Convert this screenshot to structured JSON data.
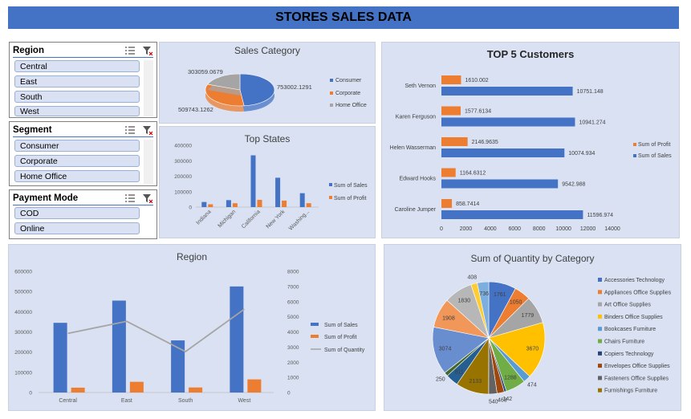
{
  "header": {
    "title": "STORES SALES DATA"
  },
  "slicers": {
    "region": {
      "title": "Region",
      "items": [
        "Central",
        "East",
        "South",
        "West"
      ]
    },
    "segment": {
      "title": "Segment",
      "items": [
        "Consumer",
        "Corporate",
        "Home Office"
      ]
    },
    "payment": {
      "title": "Payment Mode",
      "items": [
        "COD",
        "Online"
      ]
    }
  },
  "colors": {
    "sales": "#4472c4",
    "profit": "#ed7d31",
    "quantity": "#a5a5a5",
    "panel": "#d9e1f2"
  },
  "chart_data": [
    {
      "id": "sales-category",
      "type": "pie",
      "title": "Sales Category",
      "categories": [
        "Consumer",
        "Corporate",
        "Home Office"
      ],
      "values": [
        753002.1291,
        509743.1262,
        303059.0679
      ],
      "labels": [
        "753002.1291",
        "509743.1262",
        "303059.0679"
      ],
      "colors": [
        "#4472c4",
        "#ed7d31",
        "#a5a5a5"
      ]
    },
    {
      "id": "top-states",
      "type": "bar",
      "title": "Top States",
      "categories": [
        "Indiana",
        "Michigan",
        "California",
        "New York",
        "Washing..."
      ],
      "series": [
        {
          "name": "Sum of Sales",
          "values": [
            33000,
            45000,
            335000,
            190000,
            90000
          ]
        },
        {
          "name": "Sum of Profit",
          "values": [
            18000,
            25000,
            47000,
            42000,
            25000
          ]
        }
      ],
      "yticks": [
        "0",
        "100000",
        "200000",
        "300000",
        "400000"
      ],
      "ylim": [
        0,
        400000
      ]
    },
    {
      "id": "top-customers",
      "type": "bar",
      "title": "TOP 5 Customers",
      "categories": [
        "Seth Vernon",
        "Karen Ferguson",
        "Helen Wasserman",
        "Edward Hooks",
        "Caroline Jumper"
      ],
      "series": [
        {
          "name": "Sum of Profit",
          "values": [
            1610.002,
            1577.6134,
            2146.9635,
            1164.6312,
            858.7414
          ],
          "labels": [
            "1610.002",
            "1577.6134",
            "2146.9635",
            "1164.6312",
            "858.7414"
          ]
        },
        {
          "name": "Sum of Sales",
          "values": [
            10751.148,
            10941.274,
            10074.934,
            9542.988,
            11596.974
          ],
          "labels": [
            "10751.148",
            "10941.274",
            "10074.934",
            "9542.988",
            "11596.974"
          ]
        }
      ],
      "xticks": [
        "0",
        "2000",
        "4000",
        "6000",
        "8000",
        "10000",
        "12000",
        "14000"
      ],
      "xlim": [
        0,
        14000
      ]
    },
    {
      "id": "region",
      "type": "bar",
      "title": "Region",
      "categories": [
        "Central",
        "East",
        "South",
        "West"
      ],
      "series": [
        {
          "name": "Sum of Sales",
          "values": [
            345000,
            455000,
            258000,
            525000
          ]
        },
        {
          "name": "Sum of Profit",
          "values": [
            24000,
            53000,
            25000,
            65000
          ]
        },
        {
          "name": "Sum of Quantity",
          "type": "line",
          "axis": "right",
          "values": [
            3900,
            4700,
            2700,
            5500
          ]
        }
      ],
      "yticks_left": [
        "0",
        "100000",
        "200000",
        "300000",
        "400000",
        "500000",
        "600000"
      ],
      "ylim_left": [
        0,
        600000
      ],
      "yticks_right": [
        "0",
        "1000",
        "2000",
        "3000",
        "4000",
        "5000",
        "6000",
        "7000",
        "8000"
      ],
      "ylim_right": [
        0,
        8000
      ]
    },
    {
      "id": "quantity-category",
      "type": "pie",
      "title": "Sum of Quantity by Category",
      "legend": [
        "Accessories Technology",
        "Appliances Office Supplies",
        "Art Office Supplies",
        "Binders Office Supplies",
        "Bookcases Furniture",
        "Chairs Furniture",
        "Copiers Technology",
        "Envelopes Office Supplies",
        "Fasteners Office Supplies",
        "Furnishings Furniture"
      ],
      "slices": [
        {
          "value": 1761,
          "color": "#4472c4"
        },
        {
          "value": 1050,
          "color": "#ed7d31"
        },
        {
          "value": 1779,
          "color": "#a5a5a5"
        },
        {
          "value": 3670,
          "color": "#ffc000"
        },
        {
          "value": 474,
          "color": "#5b9bd5"
        },
        {
          "value": 1288,
          "color": "#70ad47"
        },
        {
          "value": 142,
          "color": "#264478"
        },
        {
          "value": 463,
          "color": "#9e480e"
        },
        {
          "value": 540,
          "color": "#636363"
        },
        {
          "value": 2133,
          "color": "#997300"
        },
        {
          "value": 811,
          "color": "#255e91"
        },
        {
          "value": 250,
          "color": "#43682b"
        },
        {
          "value": 3074,
          "color": "#698ed0"
        },
        {
          "value": 1908,
          "color": "#f1975a"
        },
        {
          "value": 1830,
          "color": "#b7b7b7"
        },
        {
          "value": 408,
          "color": "#ffcd33"
        },
        {
          "value": 736,
          "color": "#7cafdd"
        }
      ]
    }
  ]
}
